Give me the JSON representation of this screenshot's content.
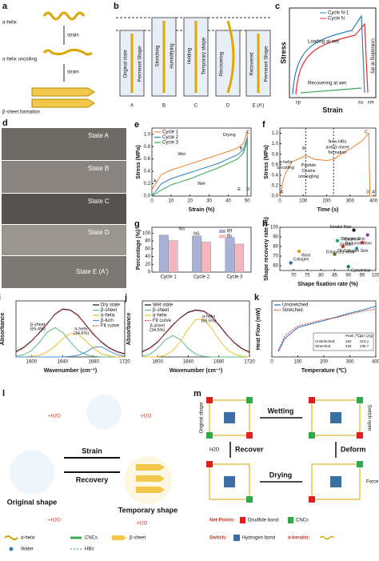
{
  "diagrams": {
    "a": {
      "label": "a",
      "texts": [
        "α-helix",
        "strain",
        "α-helix uncoiling",
        "strain",
        "β-sheet formation"
      ]
    },
    "b": {
      "label": "b",
      "texts": [
        "Original state",
        "Permeant Shape",
        "Stretching",
        "Humidifying",
        "Holding",
        "Temporary shape",
        "Recovering",
        "Recovered",
        "Permeant Shape"
      ],
      "states": [
        "A",
        "B",
        "C",
        "D",
        "E (A')"
      ]
    },
    "c": {
      "label": "c",
      "legend": [
        "Cycle N-1",
        "Cycle N"
      ],
      "texts": [
        "Loading at wet",
        "Unloading at dry",
        "Recovering at wet",
        "Stress",
        "Strain",
        "εp",
        "εu",
        "εm"
      ]
    },
    "d": {
      "label": "d",
      "states": [
        "State A",
        "State B",
        "State C",
        "State D",
        "State E (A')"
      ]
    },
    "l": {
      "label": "l",
      "texts": [
        "+H2O",
        "-H2O",
        "Strain",
        "Recovery",
        "Original shape",
        "Temporary shape",
        "+H2O",
        "-H2O"
      ],
      "legend": [
        "α-helix",
        "CNCs",
        "β-sheet",
        "Water",
        "HBs"
      ]
    },
    "m": {
      "label": "m",
      "texts": [
        "Original shape",
        "Wetting",
        "Switch open",
        "Deform",
        "H2O",
        "Recover",
        "Drying",
        "Force"
      ],
      "legend": [
        "Net-Points:",
        "Disulfide bond",
        "CNCs",
        "Switch:",
        "Hydrogen bond",
        "α-keratin:"
      ]
    }
  },
  "chart_data": [
    {
      "type": "line",
      "label": "e",
      "xlabel": "Strain (%)",
      "ylabel": "Stress (MPa)",
      "legend": "upper left",
      "x": [
        0,
        5,
        10,
        15,
        20,
        25,
        30,
        35,
        40,
        45,
        48,
        50,
        50
      ],
      "series": [
        {
          "name": "Cycle 1",
          "color": "#f07f2a",
          "values": [
            0.1,
            0.35,
            0.42,
            0.47,
            0.52,
            0.57,
            0.62,
            0.67,
            0.72,
            0.78,
            0.85,
            1.05,
            0.0
          ]
        },
        {
          "name": "Cycle 2",
          "color": "#2f7fc1",
          "values": [
            0,
            0.2,
            0.28,
            0.33,
            0.38,
            0.43,
            0.48,
            0.53,
            0.6,
            0.67,
            0.75,
            0.95,
            0.0
          ]
        },
        {
          "name": "Cycle 3",
          "color": "#3aa85a",
          "values": [
            0,
            0.1,
            0.18,
            0.23,
            0.28,
            0.34,
            0.4,
            0.46,
            0.53,
            0.6,
            0.7,
            0.9,
            0.0
          ]
        }
      ],
      "xlim": [
        0,
        52
      ],
      "xticks": [
        0,
        10,
        20,
        30,
        40,
        50
      ],
      "ylim": [
        0,
        1.1
      ],
      "yticks": [
        {
          "value": 0,
          "label": "0.0"
        },
        {
          "value": 0.2,
          "label": "0.2"
        },
        {
          "value": 0.4,
          "label": "0.4"
        },
        {
          "value": 0.6,
          "label": "0.6"
        },
        {
          "value": 0.8,
          "label": "0.8"
        },
        {
          "value": 1,
          "label": "1.0"
        }
      ],
      "annotations": [
        "Wet",
        "Drying",
        "Wet",
        "A",
        "B",
        "C",
        "D",
        "E"
      ]
    },
    {
      "type": "line",
      "label": "f",
      "xlabel": "Time (s)",
      "ylabel": "Stress (MPa)",
      "x": [
        0,
        20,
        50,
        100,
        110,
        150,
        200,
        230,
        260,
        300,
        350,
        380,
        385,
        390,
        400
      ],
      "series": [
        {
          "color": "#f07f2a",
          "values": [
            0,
            0.4,
            0.65,
            0.75,
            0.78,
            0.7,
            0.68,
            0.7,
            0.8,
            0.9,
            1.05,
            1.2,
            0,
            0,
            0
          ]
        }
      ],
      "xlim": [
        0,
        410
      ],
      "xticks": [
        0,
        100,
        200,
        300,
        400
      ],
      "ylim": [
        0,
        1.3
      ],
      "yticks": [
        {
          "value": 0,
          "label": "0.0"
        },
        {
          "value": 0.2,
          "label": "0.2"
        },
        {
          "value": 0.4,
          "label": "0.4"
        },
        {
          "value": 0.6,
          "label": "0.6"
        },
        {
          "value": 0.8,
          "label": "0.8"
        },
        {
          "value": 1,
          "label": "1.0"
        },
        {
          "value": 1.2,
          "label": "1.2"
        }
      ],
      "annotations": [
        "α-helix",
        "uncoiling",
        "Peptide",
        "Chains",
        "untangling",
        "New HBs",
        "and β-sheet",
        "formation",
        "A",
        "B",
        "C",
        "D",
        "A'"
      ]
    },
    {
      "type": "bar",
      "label": "g",
      "ylabel": "Percentage (%)",
      "legend": "upper right",
      "categories": [
        "Cycle 1",
        "Cycle 2",
        "Cycle 3"
      ],
      "series": [
        {
          "name": "Rf",
          "color": "#a7b2d6",
          "values": [
            95,
            93,
            89
          ]
        },
        {
          "name": "Rr",
          "color": "#f4b7bd",
          "values": [
            81,
            77,
            72
          ]
        }
      ],
      "ylim": [
        0,
        115
      ],
      "yticks": [
        0,
        20,
        40,
        60,
        80,
        100
      ],
      "annotations": [
        "NS",
        "NS"
      ]
    },
    {
      "type": "scatter",
      "label": "h",
      "xlabel": "Shape fixation rate (%)",
      "ylabel": "Shape recovery rate (%)",
      "series": [
        {
          "name": "Keratin fiber",
          "color": "#222222",
          "x": [
            92
          ],
          "values": [
            97
          ]
        },
        {
          "name": "Collagen Skin",
          "color": "#8e44ad",
          "x": [
            97
          ],
          "values": [
            92
          ]
        },
        {
          "name": "This Work",
          "color": "#e8384f",
          "x": [
            95
          ],
          "values": [
            84
          ]
        },
        {
          "name": "Gelatin",
          "color": "#27ae60",
          "x": [
            86
          ],
          "values": [
            86
          ]
        },
        {
          "name": "Reduced Wool",
          "color": "#c0392b",
          "x": [
            88
          ],
          "values": [
            80
          ]
        },
        {
          "name": "Enhanced Wool",
          "color": "#2e86c1",
          "x": [
            93
          ],
          "values": [
            78
          ]
        },
        {
          "name": "TP-Collagen Skin",
          "color": "#7d6608",
          "x": [
            85
          ],
          "values": [
            72
          ]
        },
        {
          "name": "Wool",
          "color": "#e0a020",
          "x": [
            72
          ],
          "values": [
            75
          ]
        },
        {
          "name": "Collagen",
          "color": "#3b6ea5",
          "x": [
            69
          ],
          "values": [
            63
          ]
        },
        {
          "name": "Camel Hair",
          "color": "#1e8449",
          "x": [
            90
          ],
          "values": [
            59
          ]
        }
      ],
      "xlim": [
        65,
        100
      ],
      "xticks": [
        70,
        75,
        80,
        85,
        90,
        95,
        100
      ],
      "ylim": [
        55,
        100
      ],
      "yticks": [
        60,
        70,
        80,
        90,
        100
      ]
    },
    {
      "type": "line",
      "label": "i",
      "xlabel": "Wavenumber (cm⁻¹)",
      "ylabel": "Absorbance",
      "legend": "upper right",
      "x": [
        1580,
        1590,
        1600,
        1610,
        1620,
        1630,
        1640,
        1650,
        1660,
        1670,
        1680,
        1690,
        1700,
        1710,
        1720
      ],
      "series": [
        {
          "name": "Dry state",
          "color": "#111111",
          "values": [
            0.1,
            0.18,
            0.3,
            0.45,
            0.62,
            0.8,
            0.9,
            0.88,
            0.78,
            0.6,
            0.42,
            0.28,
            0.17,
            0.1,
            0.06
          ]
        },
        {
          "name": "β-sheet",
          "color": "#5cb88a",
          "values": [
            0.01,
            0.04,
            0.12,
            0.27,
            0.46,
            0.55,
            0.46,
            0.28,
            0.12,
            0.04,
            0.01,
            0,
            0,
            0,
            0
          ]
        },
        {
          "name": "α-helix",
          "color": "#e6c229",
          "values": [
            0,
            0,
            0.01,
            0.03,
            0.09,
            0.2,
            0.34,
            0.44,
            0.43,
            0.3,
            0.16,
            0.06,
            0.02,
            0,
            0
          ]
        },
        {
          "name": "β-turn",
          "color": "#4a90d9",
          "values": [
            0,
            0,
            0,
            0,
            0,
            0,
            0,
            0.01,
            0.03,
            0.09,
            0.18,
            0.19,
            0.11,
            0.04,
            0.01
          ]
        },
        {
          "name": "Fit curve",
          "color": "#e03030",
          "style": "dashed",
          "values": [
            0.09,
            0.17,
            0.29,
            0.46,
            0.63,
            0.79,
            0.89,
            0.87,
            0.77,
            0.6,
            0.43,
            0.27,
            0.16,
            0.09,
            0.05
          ]
        }
      ],
      "xlim": [
        1580,
        1720
      ],
      "xticks": [
        1600,
        1640,
        1680,
        1720
      ],
      "ylim": [
        0,
        1.05
      ],
      "annotations": [
        "β-sheet",
        "(65.4%)",
        "α-helix",
        "(34.6%)"
      ]
    },
    {
      "type": "line",
      "label": "j",
      "xlabel": "Wavenumber (cm⁻¹)",
      "ylabel": "Absorbance",
      "legend": "upper left",
      "x": [
        1580,
        1590,
        1600,
        1610,
        1620,
        1630,
        1640,
        1650,
        1660,
        1670,
        1680,
        1690,
        1700,
        1710,
        1720
      ],
      "series": [
        {
          "name": "Wet state",
          "color": "#111111",
          "values": [
            0.1,
            0.17,
            0.28,
            0.44,
            0.6,
            0.74,
            0.84,
            0.88,
            0.86,
            0.77,
            0.6,
            0.42,
            0.27,
            0.16,
            0.09
          ]
        },
        {
          "name": "β-sheet",
          "color": "#5cb88a",
          "values": [
            0.01,
            0.05,
            0.16,
            0.32,
            0.4,
            0.32,
            0.16,
            0.05,
            0.01,
            0,
            0,
            0,
            0,
            0,
            0
          ]
        },
        {
          "name": "α-helix",
          "color": "#e6c229",
          "values": [
            0,
            0,
            0,
            0.03,
            0.12,
            0.3,
            0.52,
            0.7,
            0.71,
            0.55,
            0.33,
            0.15,
            0.05,
            0.01,
            0
          ]
        },
        {
          "name": "Fit curve",
          "color": "#e03030",
          "style": "dashed",
          "values": [
            0.09,
            0.16,
            0.27,
            0.45,
            0.61,
            0.73,
            0.83,
            0.87,
            0.85,
            0.76,
            0.61,
            0.43,
            0.26,
            0.15,
            0.08
          ]
        }
      ],
      "xlim": [
        1580,
        1720
      ],
      "xticks": [
        1600,
        1640,
        1680,
        1720
      ],
      "ylim": [
        0,
        1.05
      ],
      "annotations": [
        "β-sheet",
        "(34.5%)",
        "α-helix",
        "(65.5%)"
      ]
    },
    {
      "type": "line",
      "label": "k",
      "xlabel": "Temperature (℃)",
      "ylabel": "Heat Flow (mW)",
      "legend": "upper left",
      "x": [
        25,
        50,
        100,
        150,
        200,
        250,
        300,
        350,
        400
      ],
      "series": [
        {
          "name": "Unstretched",
          "color": "#1f6fb5",
          "values": [
            0.1,
            0.35,
            0.55,
            0.62,
            0.68,
            0.75,
            0.82,
            0.88,
            0.95
          ]
        },
        {
          "name": "Stretched",
          "color": "#e03030",
          "style": "dashed",
          "values": [
            0.12,
            0.4,
            0.58,
            0.64,
            0.7,
            0.74,
            0.8,
            0.86,
            0.9
          ]
        }
      ],
      "xlim": [
        0,
        400
      ],
      "xticks": [
        0,
        100,
        200,
        300,
        400
      ],
      "ylim": [
        0,
        1.05
      ],
      "table": {
        "header": [
          "Peak (℃)",
          "ΔH (J/g)"
        ],
        "rows": [
          [
            "Unstretched",
            "260",
            "319.1"
          ],
          [
            "Stretched",
            "228",
            "335.7"
          ]
        ]
      }
    }
  ]
}
